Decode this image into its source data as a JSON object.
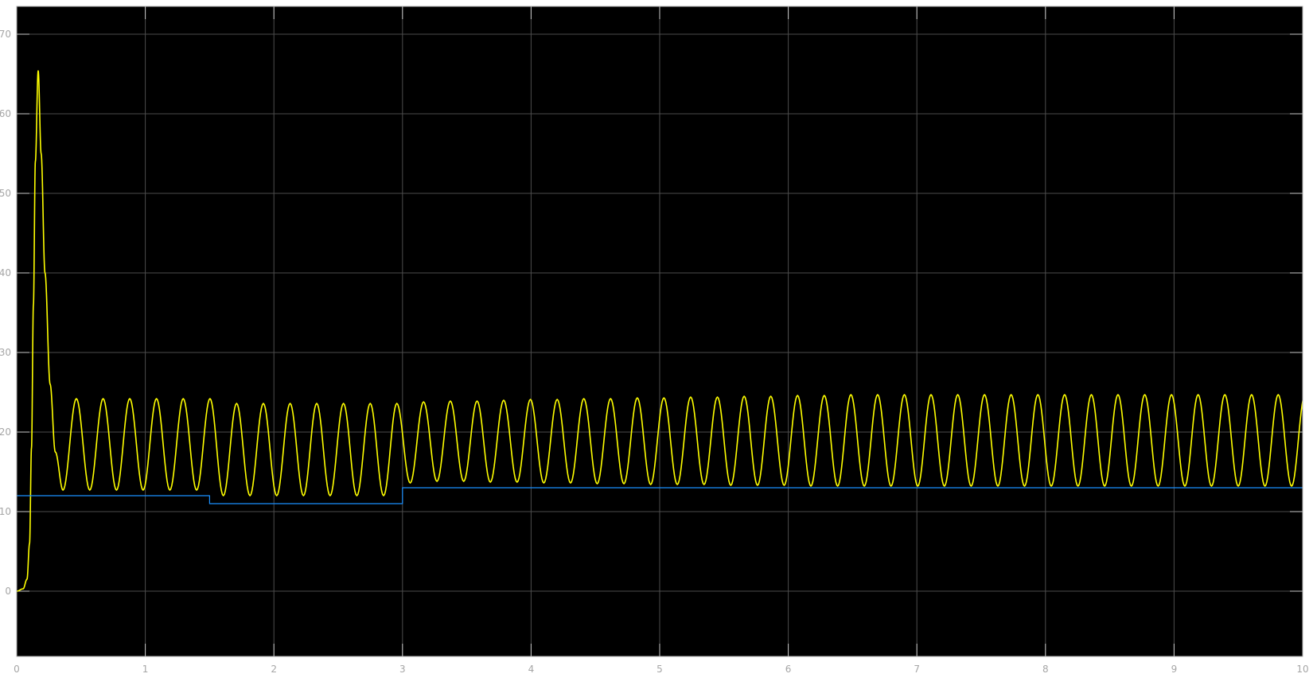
{
  "chart_data": {
    "type": "line",
    "title": "",
    "xlabel": "",
    "ylabel": "",
    "xlim": [
      0,
      10
    ],
    "ylim": [
      -8.2,
      73.5
    ],
    "grid": true,
    "legend": "none",
    "background_color": "#000000",
    "grid_color": "#4d4d4d",
    "xticks": [
      "0",
      "1",
      "2",
      "3",
      "4",
      "5",
      "6",
      "7",
      "8",
      "9",
      "10"
    ],
    "xtick_values": [
      0,
      1,
      2,
      3,
      4,
      5,
      6,
      7,
      8,
      9,
      10
    ],
    "yticks": [
      "0",
      "10",
      "20",
      "30",
      "40",
      "50",
      "60",
      "70"
    ],
    "ytick_values": [
      0,
      10,
      20,
      30,
      40,
      50,
      60,
      70
    ],
    "series": [
      {
        "color": "#ffff00",
        "interpolation": "cosine-between-extrema",
        "points": [
          [
            0,
            0
          ],
          [
            0.05,
            0.3
          ],
          [
            0.08,
            1.5
          ],
          [
            0.1,
            6
          ],
          [
            0.115,
            18
          ],
          [
            0.13,
            36
          ],
          [
            0.145,
            54
          ],
          [
            0.167,
            65.4
          ],
          [
            0.19,
            55
          ],
          [
            0.22,
            40
          ],
          [
            0.26,
            26
          ],
          [
            0.3,
            17.5
          ],
          [
            0.36,
            12.7
          ],
          [
            0.464,
            24.2
          ],
          [
            0.568,
            12.7
          ],
          [
            0.672,
            24.2
          ],
          [
            0.776,
            12.7
          ],
          [
            0.879,
            24.2
          ],
          [
            0.983,
            12.7
          ],
          [
            1.087,
            24.2
          ],
          [
            1.191,
            12.7
          ],
          [
            1.295,
            24.2
          ],
          [
            1.399,
            12.7
          ],
          [
            1.503,
            24.2
          ],
          [
            1.607,
            12.0
          ],
          [
            1.71,
            23.6
          ],
          [
            1.814,
            12.0
          ],
          [
            1.918,
            23.6
          ],
          [
            2.022,
            12.0
          ],
          [
            2.126,
            23.6
          ],
          [
            2.23,
            12.0
          ],
          [
            2.333,
            23.6
          ],
          [
            2.437,
            12.0
          ],
          [
            2.541,
            23.6
          ],
          [
            2.645,
            12.0
          ],
          [
            2.749,
            23.6
          ],
          [
            2.853,
            12.0
          ],
          [
            2.956,
            23.6
          ],
          [
            3.06,
            13.6
          ],
          [
            3.164,
            23.8
          ],
          [
            3.268,
            13.8
          ],
          [
            3.372,
            23.9
          ],
          [
            3.476,
            13.8
          ],
          [
            3.58,
            23.9
          ],
          [
            3.683,
            13.7
          ],
          [
            3.787,
            24.0
          ],
          [
            3.891,
            13.7
          ],
          [
            3.995,
            24.1
          ],
          [
            4.099,
            13.6
          ],
          [
            4.203,
            24.1
          ],
          [
            4.307,
            13.6
          ],
          [
            4.41,
            24.2
          ],
          [
            4.514,
            13.5
          ],
          [
            4.618,
            24.2
          ],
          [
            4.722,
            13.5
          ],
          [
            4.826,
            24.3
          ],
          [
            4.93,
            13.4
          ],
          [
            5.033,
            24.3
          ],
          [
            5.137,
            13.4
          ],
          [
            5.241,
            24.4
          ],
          [
            5.345,
            13.4
          ],
          [
            5.449,
            24.4
          ],
          [
            5.553,
            13.3
          ],
          [
            5.657,
            24.5
          ],
          [
            5.761,
            13.3
          ],
          [
            5.864,
            24.5
          ],
          [
            5.968,
            13.3
          ],
          [
            6.072,
            24.6
          ],
          [
            6.176,
            13.2
          ],
          [
            6.28,
            24.6
          ],
          [
            6.384,
            13.2
          ],
          [
            6.487,
            24.7
          ],
          [
            6.591,
            13.2
          ],
          [
            6.695,
            24.7
          ],
          [
            6.799,
            13.2
          ],
          [
            6.903,
            24.7
          ],
          [
            7.007,
            13.2
          ],
          [
            7.11,
            24.7
          ],
          [
            7.214,
            13.2
          ],
          [
            7.318,
            24.7
          ],
          [
            7.422,
            13.2
          ],
          [
            7.526,
            24.7
          ],
          [
            7.63,
            13.2
          ],
          [
            7.733,
            24.7
          ],
          [
            7.837,
            13.2
          ],
          [
            7.941,
            24.7
          ],
          [
            8.045,
            13.2
          ],
          [
            8.149,
            24.7
          ],
          [
            8.253,
            13.2
          ],
          [
            8.357,
            24.7
          ],
          [
            8.46,
            13.2
          ],
          [
            8.564,
            24.7
          ],
          [
            8.668,
            13.2
          ],
          [
            8.772,
            24.7
          ],
          [
            8.876,
            13.2
          ],
          [
            8.98,
            24.7
          ],
          [
            9.084,
            13.2
          ],
          [
            9.187,
            24.7
          ],
          [
            9.291,
            13.2
          ],
          [
            9.395,
            24.7
          ],
          [
            9.499,
            13.2
          ],
          [
            9.603,
            24.7
          ],
          [
            9.707,
            13.2
          ],
          [
            9.81,
            24.7
          ],
          [
            9.914,
            13.2
          ],
          [
            10.018,
            24.7
          ]
        ]
      },
      {
        "color": "#1a8fff",
        "interpolation": "step",
        "points": [
          [
            0,
            12
          ],
          [
            1.5,
            12
          ],
          [
            1.5,
            11
          ],
          [
            3,
            11
          ],
          [
            3,
            13
          ],
          [
            10,
            13
          ]
        ]
      }
    ]
  }
}
